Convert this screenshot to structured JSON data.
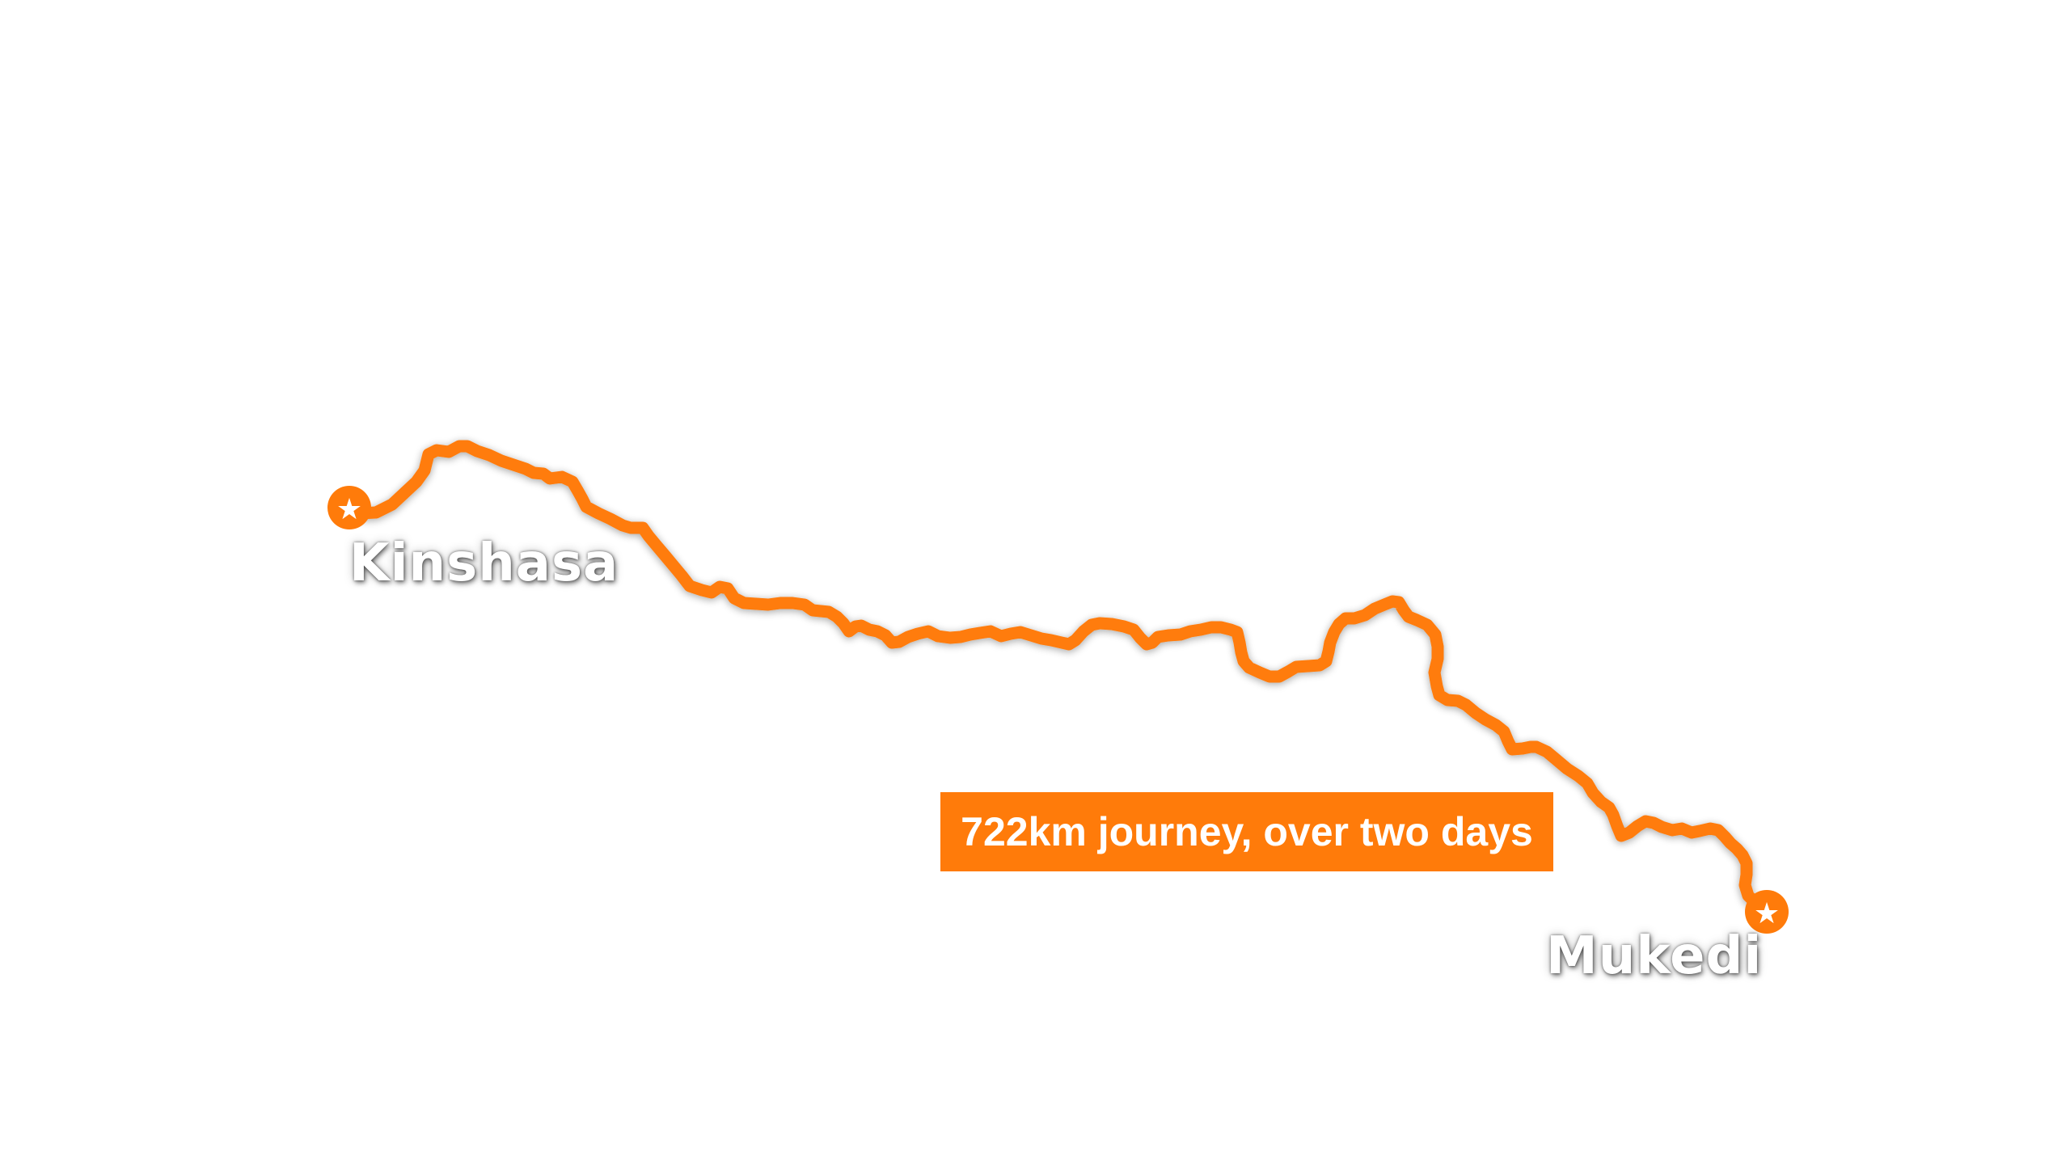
{
  "map": {
    "route_color": "#ff7b0a",
    "route": {
      "start": {
        "name": "Kinshasa",
        "marker_icon": "star-icon"
      },
      "end": {
        "name": "Mukedi",
        "marker_icon": "star-icon"
      }
    },
    "caption": "722km journey, over two days"
  }
}
